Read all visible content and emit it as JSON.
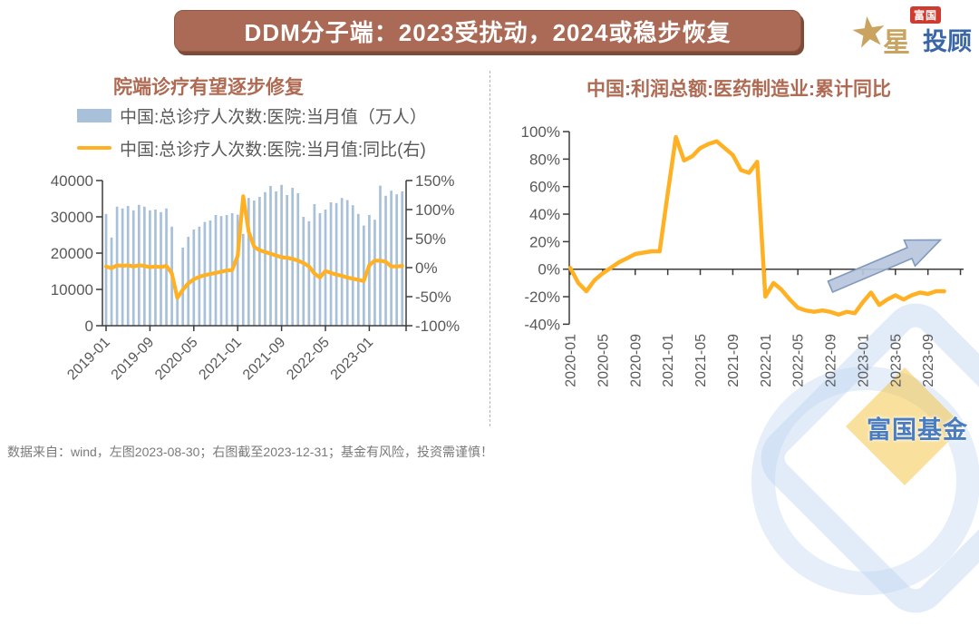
{
  "banner": {
    "title": "DDM分子端：2023受扰动，2024或稳步恢复"
  },
  "logo": {
    "fuguo": "富国",
    "star_icon": "★",
    "xing": "星",
    "tougu": "投顾"
  },
  "footnote": "数据来自：wind，左图2023-08-30；右图截至2023-12-31；基金有风险，投资需谨慎！",
  "watermark": {
    "text": "富国基金"
  },
  "colors": {
    "banner_bg": "#aa6a55",
    "title_text": "#ae6a52",
    "bar": "#a8c1d9",
    "line": "#ffb123",
    "axis": "#3b3b3b",
    "tick_label": "#595959",
    "arrow_fill": "#b7c5dc",
    "arrow_stroke": "#8099bf"
  },
  "chart_data": [
    {
      "id": "hospital-visits",
      "type": "bar",
      "title": "院端诊疗有望逐步修复",
      "legend": [
        {
          "kind": "bar",
          "color": "#a8c1d9",
          "label": "中国:总诊疗人次数:医院:当月值（万人）"
        },
        {
          "kind": "line",
          "color": "#ffb123",
          "label": "中国:总诊疗人次数:医院:当月值:同比(右)"
        }
      ],
      "months": [
        "2019-01",
        "2019-02",
        "2019-03",
        "2019-04",
        "2019-05",
        "2019-06",
        "2019-07",
        "2019-08",
        "2019-09",
        "2019-10",
        "2019-11",
        "2019-12",
        "2020-01",
        "2020-02",
        "2020-03",
        "2020-04",
        "2020-05",
        "2020-06",
        "2020-07",
        "2020-08",
        "2020-09",
        "2020-10",
        "2020-11",
        "2020-12",
        "2021-01",
        "2021-02",
        "2021-03",
        "2021-04",
        "2021-05",
        "2021-06",
        "2021-07",
        "2021-08",
        "2021-09",
        "2021-10",
        "2021-11",
        "2021-12",
        "2022-01",
        "2022-02",
        "2022-03",
        "2022-04",
        "2022-05",
        "2022-06",
        "2022-07",
        "2022-08",
        "2022-09",
        "2022-10",
        "2022-11",
        "2022-12",
        "2023-01",
        "2023-02",
        "2023-03",
        "2023-04",
        "2023-05",
        "2023-06",
        "2023-07"
      ],
      "bar_values": [
        30800,
        24300,
        32800,
        32300,
        33000,
        31800,
        33300,
        32800,
        31800,
        32000,
        31300,
        32300,
        27300,
        8500,
        21500,
        24500,
        26500,
        27300,
        28600,
        29000,
        30500,
        30200,
        30500,
        31000,
        30600,
        25300,
        35200,
        34500,
        35500,
        36800,
        38500,
        37000,
        38800,
        36000,
        38000,
        36500,
        30000,
        28800,
        33500,
        31000,
        32000,
        34000,
        33800,
        35200,
        34600,
        33200,
        30800,
        27600,
        30500,
        29200,
        38600,
        35800,
        37200,
        36200,
        37000
      ],
      "line_values_pct": [
        2,
        -1,
        4,
        3,
        4,
        2,
        4,
        3,
        1,
        2,
        1,
        3,
        -10,
        -52,
        -38,
        -27,
        -20,
        -16,
        -13,
        -11,
        -9,
        -7,
        -5,
        -4,
        20,
        123,
        62,
        36,
        30,
        27,
        24,
        21,
        18,
        17,
        15,
        12,
        8,
        2,
        -10,
        -17,
        -6,
        -9,
        -12,
        -14,
        -17,
        -19,
        -21,
        -23,
        4,
        12,
        12,
        10,
        2,
        2,
        3
      ],
      "y_left_ticks": [
        "0",
        "10000",
        "20000",
        "30000",
        "40000"
      ],
      "y_left_lim": [
        0,
        40000
      ],
      "y_right_ticks": [
        "150%",
        "100%",
        "50%",
        "0%",
        "-50%",
        "-100%"
      ],
      "y_right_lim": [
        -100,
        150
      ],
      "x_tick_labels": [
        "2019-01",
        "2019-09",
        "2020-05",
        "2021-01",
        "2021-09",
        "2022-05",
        "2023-01"
      ],
      "x_tick_indices": [
        0,
        8,
        16,
        24,
        32,
        40,
        48
      ]
    },
    {
      "id": "pharma-profit",
      "type": "line",
      "title": "中国:利润总额:医药制造业:累计同比",
      "months": [
        "2020-01",
        "2020-02",
        "2020-03",
        "2020-04",
        "2020-05",
        "2020-06",
        "2020-07",
        "2020-08",
        "2020-09",
        "2020-10",
        "2020-11",
        "2020-12",
        "2021-01",
        "2021-02",
        "2021-03",
        "2021-04",
        "2021-05",
        "2021-06",
        "2021-07",
        "2021-08",
        "2021-09",
        "2021-10",
        "2021-11",
        "2021-12",
        "2022-01",
        "2022-02",
        "2022-03",
        "2022-04",
        "2022-05",
        "2022-06",
        "2022-07",
        "2022-08",
        "2022-09",
        "2022-10",
        "2022-11",
        "2022-12",
        "2023-01",
        "2023-02",
        "2023-03",
        "2023-04",
        "2023-05",
        "2023-06",
        "2023-07",
        "2023-08",
        "2023-09",
        "2023-10",
        "2023-11"
      ],
      "values_pct": [
        1,
        -10,
        -16,
        -8,
        -3,
        1,
        5,
        8,
        11,
        12,
        13,
        13,
        55,
        96,
        79,
        82,
        88,
        91,
        93,
        88,
        83,
        72,
        70,
        78,
        -20,
        -10,
        -15,
        -22,
        -28,
        -30,
        -31,
        -30,
        -31,
        -33,
        -31,
        -32,
        -24,
        -17,
        -26,
        -22,
        -19,
        -22,
        -19,
        -17,
        -18,
        -16,
        -16
      ],
      "y_ticks": [
        "100%",
        "80%",
        "60%",
        "40%",
        "20%",
        "0%",
        "-20%",
        "-40%"
      ],
      "ylim": [
        -40,
        100
      ],
      "x_tick_labels": [
        "2020-01",
        "2020-05",
        "2020-09",
        "2021-01",
        "2021-05",
        "2021-09",
        "2022-01",
        "2022-05",
        "2022-09",
        "2023-01",
        "2023-05",
        "2023-09"
      ],
      "x_tick_indices": [
        0,
        4,
        8,
        12,
        16,
        20,
        24,
        28,
        32,
        36,
        40,
        44
      ],
      "annotation_arrow": {
        "meaning": "expected gradual recovery",
        "angle_deg": -23
      }
    }
  ]
}
